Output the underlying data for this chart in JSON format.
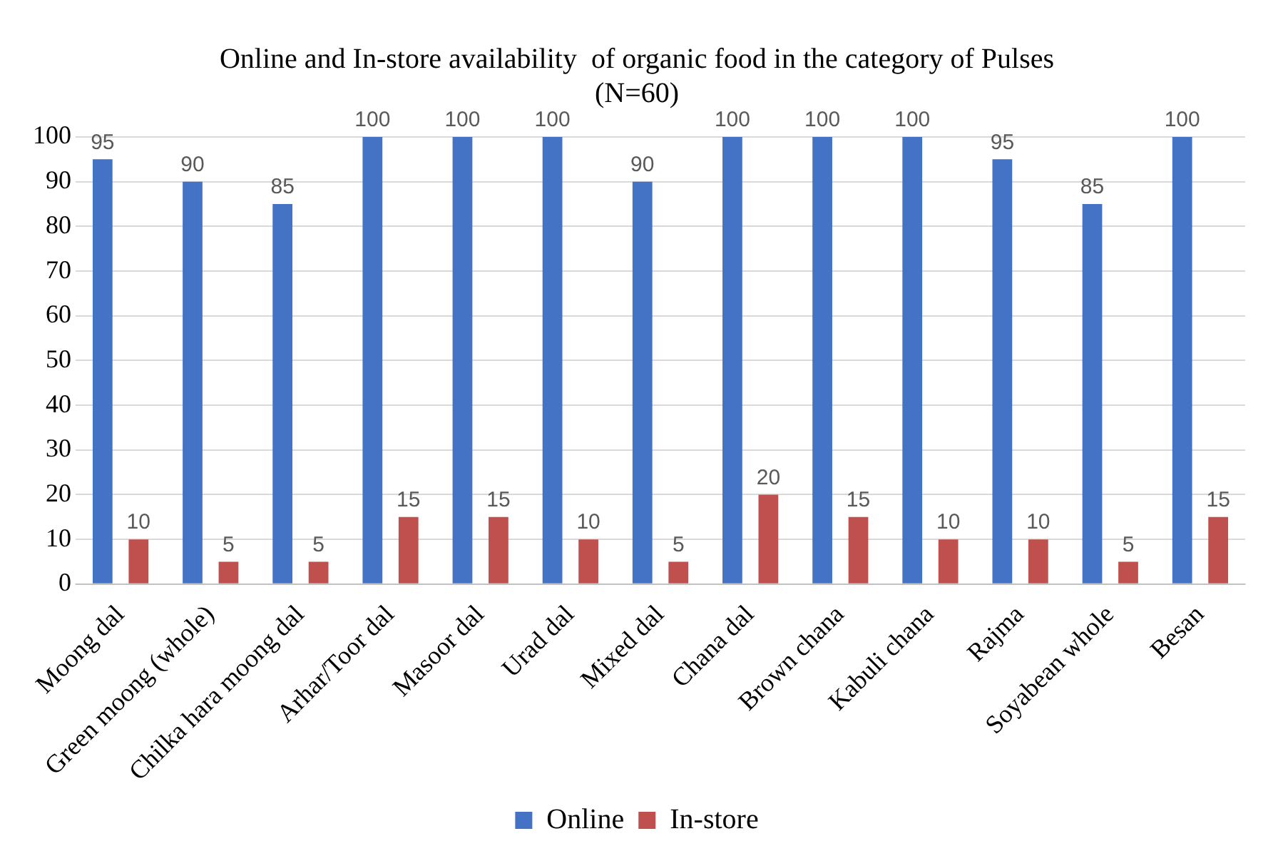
{
  "chart_data": {
    "type": "bar",
    "title": "Online and In-store availability  of organic food in the category of Pulses",
    "subtitle": "(N=60)",
    "categories": [
      "Moong dal",
      "Green moong (whole)",
      "Chilka hara moong dal",
      "Arhar/Toor dal",
      "Masoor dal",
      "Urad dal",
      "Mixed dal",
      "Chana dal",
      "Brown chana",
      "Kabuli chana",
      "Rajma",
      "Soyabean whole",
      "Besan"
    ],
    "series": [
      {
        "name": "Online",
        "color": "#4472c4",
        "values": [
          95,
          90,
          85,
          100,
          100,
          100,
          90,
          100,
          100,
          100,
          95,
          85,
          100
        ]
      },
      {
        "name": "In-store",
        "color": "#c0504d",
        "values": [
          10,
          5,
          5,
          15,
          15,
          10,
          5,
          20,
          15,
          10,
          10,
          5,
          15
        ]
      }
    ],
    "ylim": [
      0,
      100
    ],
    "yticks": [
      0,
      10,
      20,
      30,
      40,
      50,
      60,
      70,
      80,
      90,
      100
    ],
    "grid": "y",
    "legend": "bottom",
    "data_labels": true
  }
}
